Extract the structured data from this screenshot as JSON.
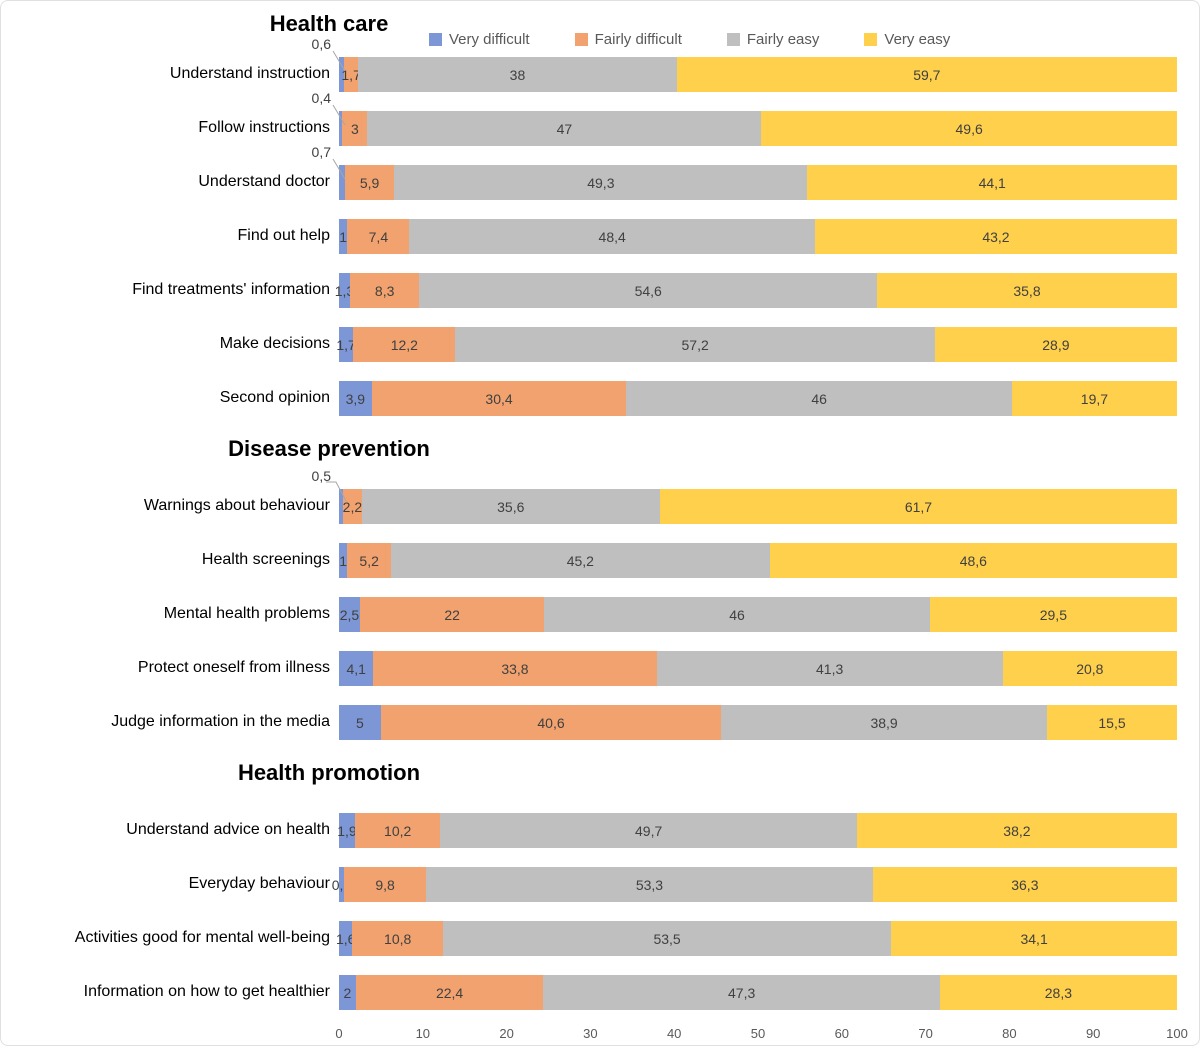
{
  "chart_data": {
    "type": "bar",
    "orientation": "horizontal",
    "stacked": true,
    "grid": false,
    "legend_position": "top",
    "series": [
      "Very difficult",
      "Fairly difficult",
      "Fairly easy",
      "Very easy"
    ],
    "series_colors": [
      "#7C96D6",
      "#F1A26E",
      "#BFBFBF",
      "#FFD04B"
    ],
    "xlim": [
      0,
      100
    ],
    "x_ticks": [
      "0",
      "10",
      "20",
      "30",
      "40",
      "50",
      "60",
      "70",
      "80",
      "90",
      "100"
    ],
    "sections": [
      {
        "title": "Health care",
        "rows": [
          {
            "label": "Understand instruction",
            "values": [
              0.6,
              1.7,
              38,
              59.7
            ],
            "value_labels": [
              "0,6",
              "1,7",
              "38",
              "59,7"
            ],
            "callout": "diagonal"
          },
          {
            "label": "Follow instructions",
            "values": [
              0.4,
              3,
              47,
              49.6
            ],
            "value_labels": [
              "0,4",
              "3",
              "47",
              "49,6"
            ],
            "callout": "diagonal"
          },
          {
            "label": "Understand doctor",
            "values": [
              0.7,
              5.9,
              49.3,
              44.1
            ],
            "value_labels": [
              "0,7",
              "5,9",
              "49,3",
              "44,1"
            ],
            "callout": "diagonal"
          },
          {
            "label": "Find out help",
            "values": [
              1,
              7.4,
              48.4,
              43.2
            ],
            "value_labels": [
              "1",
              "7,4",
              "48,4",
              "43,2"
            ]
          },
          {
            "label": "Find treatments' information",
            "values": [
              1.3,
              8.3,
              54.6,
              35.8
            ],
            "value_labels": [
              "1,3",
              "8,3",
              "54,6",
              "35,8"
            ]
          },
          {
            "label": "Make decisions",
            "values": [
              1.7,
              12.2,
              57.2,
              28.9
            ],
            "value_labels": [
              "1,7",
              "12,2",
              "57,2",
              "28,9"
            ]
          },
          {
            "label": "Second opinion",
            "values": [
              3.9,
              30.4,
              46,
              19.7
            ],
            "value_labels": [
              "3,9",
              "30,4",
              "46",
              "19,7"
            ]
          }
        ]
      },
      {
        "title": "Disease prevention",
        "rows": [
          {
            "label": "Warnings about behaviour",
            "values": [
              0.5,
              2.2,
              35.6,
              61.7
            ],
            "value_labels": [
              "0,5",
              "2,2",
              "35,6",
              "61,7"
            ],
            "callout": "elbow"
          },
          {
            "label": "Health screenings",
            "values": [
              1,
              5.2,
              45.2,
              48.6
            ],
            "value_labels": [
              "1",
              "5,2",
              "45,2",
              "48,6"
            ]
          },
          {
            "label": "Mental health problems",
            "values": [
              2.5,
              22,
              46,
              29.5
            ],
            "value_labels": [
              "2,5",
              "22",
              "46",
              "29,5"
            ]
          },
          {
            "label": "Protect oneself from illness",
            "values": [
              4.1,
              33.8,
              41.3,
              20.8
            ],
            "value_labels": [
              "4,1",
              "33,8",
              "41,3",
              "20,8"
            ]
          },
          {
            "label": "Judge information in the media",
            "values": [
              5,
              40.6,
              38.9,
              15.5
            ],
            "value_labels": [
              "5",
              "40,6",
              "38,9",
              "15,5"
            ]
          }
        ]
      },
      {
        "title": "Health promotion",
        "rows": [
          {
            "label": "Understand advice on health",
            "values": [
              1.9,
              10.2,
              49.7,
              38.2
            ],
            "value_labels": [
              "1,9",
              "10,2",
              "49,7",
              "38,2"
            ]
          },
          {
            "label": "Everyday behaviour",
            "values": [
              0.6,
              9.8,
              53.3,
              36.3
            ],
            "value_labels": [
              "0,6",
              "9,8",
              "53,3",
              "36,3"
            ]
          },
          {
            "label": "Activities good for mental well-being",
            "values": [
              1.6,
              10.8,
              53.5,
              34.1
            ],
            "value_labels": [
              "1,6",
              "10,8",
              "53,5",
              "34,1"
            ]
          },
          {
            "label": "Information on how to get healthier",
            "values": [
              2,
              22.4,
              47.3,
              28.3
            ],
            "value_labels": [
              "2",
              "22,4",
              "47,3",
              "28,3"
            ]
          }
        ]
      }
    ],
    "style_colors": {
      "value_label_text": "#404040",
      "legend_text": "#595959",
      "axis_text": "#595959",
      "callout_line": "#a6a6a6"
    }
  }
}
